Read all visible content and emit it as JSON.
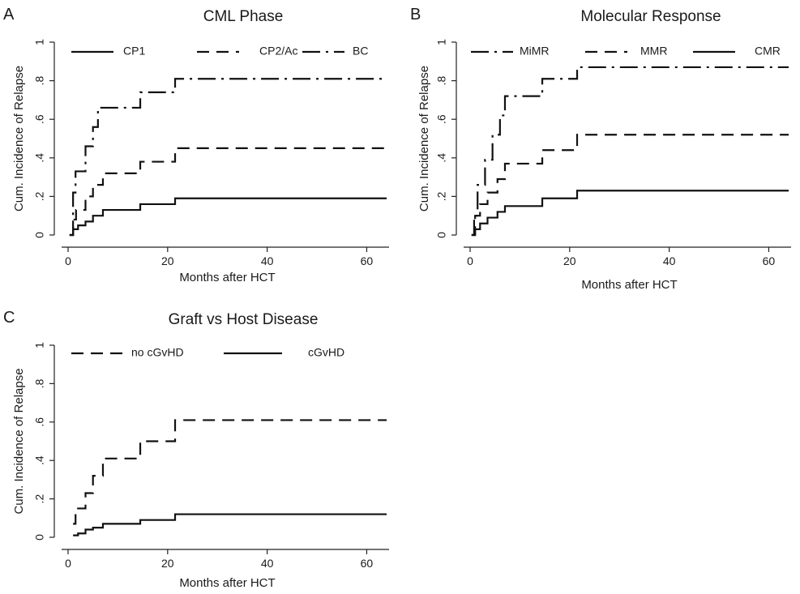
{
  "chart_data": [
    {
      "type": "line",
      "panel_letter": "A",
      "title": "CML Phase",
      "xlabel": "Months after HCT",
      "ylabel": "Cum. Incidence of Relapse",
      "xlim": [
        0,
        64
      ],
      "ylim": [
        0,
        1
      ],
      "xticks": [
        0,
        20,
        40,
        60
      ],
      "xtick_labels": [
        "0",
        "20",
        "40",
        "60"
      ],
      "yticks": [
        0,
        0.2,
        0.4,
        0.6,
        0.8,
        1
      ],
      "ytick_labels": [
        "0",
        ".2",
        ".4",
        ".6",
        ".8",
        "1"
      ],
      "grid": false,
      "legend_position": "top",
      "step": true,
      "series": [
        {
          "name": "CP1",
          "style": "solid",
          "x": [
            0.3,
            1.0,
            2.0,
            3.5,
            5.0,
            7.0,
            14.5,
            21.5,
            64
          ],
          "y": [
            0,
            0.03,
            0.05,
            0.07,
            0.1,
            0.13,
            0.16,
            0.19,
            0.19
          ]
        },
        {
          "name": "CP2/Ac",
          "style": "dashed",
          "x": [
            0.3,
            1.0,
            1.6,
            3.5,
            5.0,
            7.0,
            14.5,
            21.5,
            64
          ],
          "y": [
            0,
            0.08,
            0.13,
            0.2,
            0.26,
            0.32,
            0.38,
            0.45,
            0.45
          ]
        },
        {
          "name": "BC",
          "style": "dashdot",
          "x": [
            0.3,
            1.0,
            1.5,
            3.5,
            5.0,
            6.0,
            7.0,
            14.5,
            21.5,
            64
          ],
          "y": [
            0,
            0.22,
            0.33,
            0.46,
            0.56,
            0.66,
            0.66,
            0.74,
            0.81,
            0.81
          ]
        }
      ]
    },
    {
      "type": "line",
      "panel_letter": "B",
      "title": "Molecular Response",
      "xlabel": "Months after HCT",
      "ylabel": "Cum. Incidence of Relapse",
      "xlim": [
        0,
        64
      ],
      "ylim": [
        0,
        1
      ],
      "xticks": [
        0,
        20,
        40,
        60
      ],
      "xtick_labels": [
        "0",
        "20",
        "40",
        "60"
      ],
      "yticks": [
        0,
        0.2,
        0.4,
        0.6,
        0.8,
        1
      ],
      "ytick_labels": [
        "0",
        ".2",
        ".4",
        ".6",
        ".8",
        "1"
      ],
      "grid": false,
      "legend_position": "top",
      "step": true,
      "series": [
        {
          "name": "MiMR",
          "style": "dashdot",
          "x": [
            0.3,
            0.8,
            1.5,
            3.0,
            4.5,
            6.0,
            7.0,
            14.5,
            21.5,
            64
          ],
          "y": [
            0,
            0.1,
            0.26,
            0.39,
            0.52,
            0.62,
            0.72,
            0.81,
            0.87,
            0.87
          ]
        },
        {
          "name": "MMR",
          "style": "dashed",
          "x": [
            0.3,
            1.0,
            2.0,
            3.5,
            5.5,
            7.0,
            14.5,
            21.5,
            64
          ],
          "y": [
            0,
            0.1,
            0.16,
            0.22,
            0.29,
            0.37,
            0.44,
            0.52,
            0.52
          ]
        },
        {
          "name": "CMR",
          "style": "solid",
          "x": [
            0.3,
            1.0,
            2.0,
            3.5,
            5.5,
            7.0,
            14.5,
            21.5,
            64
          ],
          "y": [
            0,
            0.03,
            0.06,
            0.09,
            0.12,
            0.15,
            0.19,
            0.23,
            0.23
          ]
        }
      ]
    },
    {
      "type": "line",
      "panel_letter": "C",
      "title": "Graft vs Host Disease",
      "xlabel": "Months after HCT",
      "ylabel": "Cum. Incidence of Relapse",
      "xlim": [
        0,
        64
      ],
      "ylim": [
        0,
        1
      ],
      "xticks": [
        0,
        20,
        40,
        60
      ],
      "xtick_labels": [
        "0",
        "20",
        "40",
        "60"
      ],
      "yticks": [
        0,
        0.2,
        0.4,
        0.6,
        0.8,
        1
      ],
      "ytick_labels": [
        "0",
        ".2",
        ".4",
        ".6",
        ".8",
        "1"
      ],
      "grid": false,
      "legend_position": "top",
      "step": true,
      "series": [
        {
          "name": "no cGvHD",
          "style": "dashed",
          "x": [
            1.0,
            1.5,
            3.5,
            5.0,
            7.0,
            14.5,
            21.5,
            64
          ],
          "y": [
            0.07,
            0.15,
            0.23,
            0.32,
            0.41,
            0.5,
            0.61,
            0.61
          ]
        },
        {
          "name": "cGvHD",
          "style": "solid",
          "x": [
            1.0,
            2.0,
            3.5,
            5.0,
            7.0,
            14.5,
            21.5,
            64
          ],
          "y": [
            0.01,
            0.02,
            0.04,
            0.05,
            0.07,
            0.09,
            0.12,
            0.12
          ]
        }
      ]
    }
  ]
}
